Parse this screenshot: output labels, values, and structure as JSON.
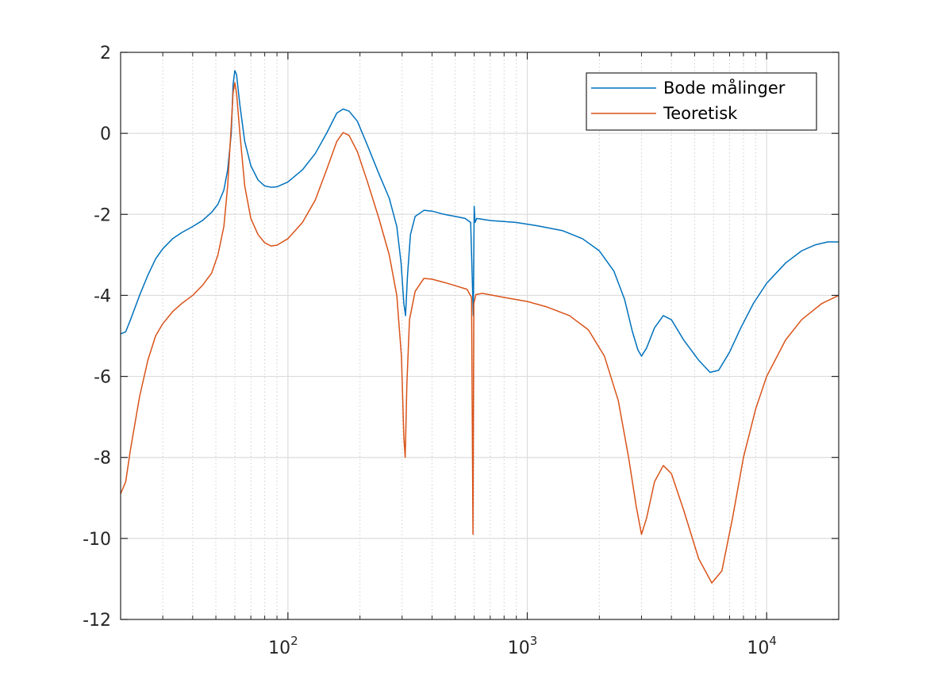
{
  "chart_data": {
    "type": "line",
    "title": "",
    "xlabel": "",
    "ylabel": "",
    "xscale": "log",
    "xlim": [
      20,
      20000
    ],
    "ylim": [
      -12,
      2
    ],
    "grid": true,
    "legend_position": "top-right",
    "x_ticks": [
      {
        "base": "10",
        "exp": "2",
        "value": 100
      },
      {
        "base": "10",
        "exp": "3",
        "value": 1000
      },
      {
        "base": "10",
        "exp": "4",
        "value": 10000
      }
    ],
    "y_ticks": [
      "2",
      "0",
      "-2",
      "-4",
      "-6",
      "-8",
      "-10",
      "-12"
    ],
    "series": [
      {
        "name": "Bode målinger",
        "color": "#0072BD",
        "points": [
          [
            20,
            -4.95
          ],
          [
            21,
            -4.9
          ],
          [
            22,
            -4.6
          ],
          [
            24,
            -4.0
          ],
          [
            26,
            -3.5
          ],
          [
            28,
            -3.1
          ],
          [
            30,
            -2.85
          ],
          [
            33,
            -2.6
          ],
          [
            36,
            -2.45
          ],
          [
            40,
            -2.3
          ],
          [
            44,
            -2.15
          ],
          [
            48,
            -1.95
          ],
          [
            51,
            -1.75
          ],
          [
            54,
            -1.4
          ],
          [
            56,
            -0.9
          ],
          [
            58,
            0.0
          ],
          [
            59,
            1.2
          ],
          [
            60,
            1.55
          ],
          [
            61,
            1.45
          ],
          [
            63,
            0.7
          ],
          [
            66,
            -0.2
          ],
          [
            70,
            -0.8
          ],
          [
            75,
            -1.15
          ],
          [
            80,
            -1.3
          ],
          [
            85,
            -1.33
          ],
          [
            90,
            -1.32
          ],
          [
            100,
            -1.2
          ],
          [
            115,
            -0.9
          ],
          [
            130,
            -0.5
          ],
          [
            145,
            0.0
          ],
          [
            160,
            0.5
          ],
          [
            170,
            0.6
          ],
          [
            180,
            0.55
          ],
          [
            195,
            0.3
          ],
          [
            215,
            -0.3
          ],
          [
            240,
            -1.0
          ],
          [
            265,
            -1.6
          ],
          [
            285,
            -2.3
          ],
          [
            297,
            -3.2
          ],
          [
            305,
            -4.2
          ],
          [
            310,
            -4.5
          ],
          [
            316,
            -3.5
          ],
          [
            325,
            -2.5
          ],
          [
            340,
            -2.05
          ],
          [
            370,
            -1.9
          ],
          [
            400,
            -1.92
          ],
          [
            450,
            -2.0
          ],
          [
            500,
            -2.05
          ],
          [
            550,
            -2.1
          ],
          [
            580,
            -2.2
          ],
          [
            595,
            -4.5
          ],
          [
            600,
            -1.8
          ],
          [
            605,
            -2.2
          ],
          [
            615,
            -2.1
          ],
          [
            700,
            -2.15
          ],
          [
            900,
            -2.2
          ],
          [
            1100,
            -2.28
          ],
          [
            1400,
            -2.4
          ],
          [
            1700,
            -2.6
          ],
          [
            2000,
            -2.9
          ],
          [
            2300,
            -3.4
          ],
          [
            2550,
            -4.1
          ],
          [
            2750,
            -4.9
          ],
          [
            2900,
            -5.35
          ],
          [
            3000,
            -5.5
          ],
          [
            3150,
            -5.3
          ],
          [
            3400,
            -4.8
          ],
          [
            3700,
            -4.5
          ],
          [
            4000,
            -4.6
          ],
          [
            4500,
            -5.1
          ],
          [
            5200,
            -5.6
          ],
          [
            5800,
            -5.9
          ],
          [
            6300,
            -5.85
          ],
          [
            7000,
            -5.4
          ],
          [
            7800,
            -4.8
          ],
          [
            8800,
            -4.2
          ],
          [
            10000,
            -3.7
          ],
          [
            12000,
            -3.2
          ],
          [
            14000,
            -2.9
          ],
          [
            16000,
            -2.75
          ],
          [
            18000,
            -2.68
          ],
          [
            20000,
            -2.68
          ]
        ]
      },
      {
        "name": "Teoretisk",
        "color": "#D95319",
        "points": [
          [
            20,
            -8.9
          ],
          [
            21,
            -8.6
          ],
          [
            22,
            -7.8
          ],
          [
            24,
            -6.5
          ],
          [
            26,
            -5.6
          ],
          [
            28,
            -5.0
          ],
          [
            30,
            -4.7
          ],
          [
            33,
            -4.4
          ],
          [
            36,
            -4.2
          ],
          [
            40,
            -4.0
          ],
          [
            44,
            -3.75
          ],
          [
            48,
            -3.45
          ],
          [
            51,
            -3.0
          ],
          [
            54,
            -2.3
          ],
          [
            56,
            -1.3
          ],
          [
            58,
            0.2
          ],
          [
            59,
            1.0
          ],
          [
            60,
            1.25
          ],
          [
            61,
            1.0
          ],
          [
            63,
            0.0
          ],
          [
            66,
            -1.3
          ],
          [
            70,
            -2.1
          ],
          [
            75,
            -2.5
          ],
          [
            80,
            -2.7
          ],
          [
            85,
            -2.78
          ],
          [
            90,
            -2.76
          ],
          [
            100,
            -2.6
          ],
          [
            115,
            -2.2
          ],
          [
            130,
            -1.65
          ],
          [
            145,
            -0.9
          ],
          [
            160,
            -0.2
          ],
          [
            170,
            0.02
          ],
          [
            180,
            -0.05
          ],
          [
            195,
            -0.45
          ],
          [
            215,
            -1.2
          ],
          [
            240,
            -2.1
          ],
          [
            265,
            -3.0
          ],
          [
            285,
            -4.0
          ],
          [
            298,
            -5.5
          ],
          [
            305,
            -7.5
          ],
          [
            309,
            -8.0
          ],
          [
            314,
            -6.2
          ],
          [
            322,
            -4.6
          ],
          [
            340,
            -3.9
          ],
          [
            370,
            -3.58
          ],
          [
            400,
            -3.6
          ],
          [
            450,
            -3.68
          ],
          [
            500,
            -3.76
          ],
          [
            560,
            -3.85
          ],
          [
            585,
            -4.05
          ],
          [
            593,
            -9.9
          ],
          [
            598,
            -4.2
          ],
          [
            610,
            -3.98
          ],
          [
            650,
            -3.95
          ],
          [
            800,
            -4.05
          ],
          [
            1000,
            -4.15
          ],
          [
            1200,
            -4.28
          ],
          [
            1500,
            -4.5
          ],
          [
            1800,
            -4.85
          ],
          [
            2100,
            -5.5
          ],
          [
            2400,
            -6.6
          ],
          [
            2650,
            -8.0
          ],
          [
            2850,
            -9.2
          ],
          [
            3000,
            -9.9
          ],
          [
            3150,
            -9.5
          ],
          [
            3400,
            -8.6
          ],
          [
            3700,
            -8.2
          ],
          [
            4000,
            -8.4
          ],
          [
            4500,
            -9.3
          ],
          [
            5200,
            -10.5
          ],
          [
            5900,
            -11.1
          ],
          [
            6500,
            -10.8
          ],
          [
            7200,
            -9.5
          ],
          [
            8000,
            -8.0
          ],
          [
            9000,
            -6.8
          ],
          [
            10000,
            -6.0
          ],
          [
            12000,
            -5.1
          ],
          [
            14000,
            -4.6
          ],
          [
            17000,
            -4.2
          ],
          [
            20000,
            -4.0
          ]
        ]
      }
    ]
  }
}
